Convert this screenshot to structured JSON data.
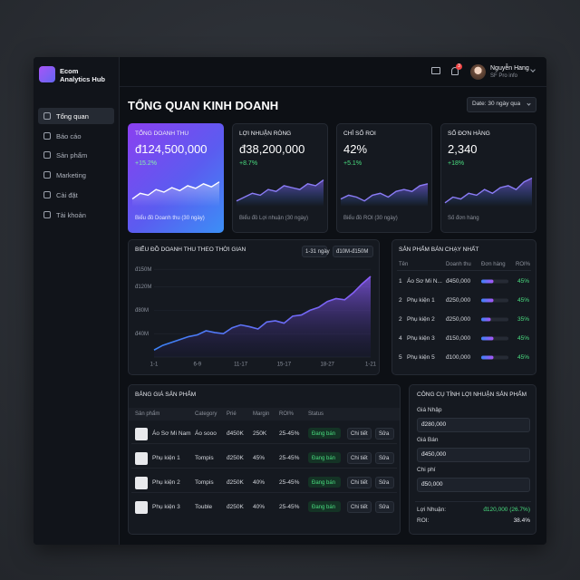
{
  "sidebar": {
    "brand": [
      "Ecom",
      "Analytics Hub"
    ],
    "nav": [
      "Tổng quan",
      "Báo cáo",
      "Sản phẩm",
      "Marketing",
      "Cài đặt",
      "Tài khoản"
    ]
  },
  "topbar": {
    "notifications": "3",
    "user_name": "Nguyễn Hang",
    "user_role": "SF Pro info"
  },
  "header": {
    "title": "TỔNG QUAN KINH DOANH",
    "date_filter": "Date: 30 ngày qua"
  },
  "kpis": [
    {
      "label": "TỔNG DOANH THU",
      "value": "đ124,500,000",
      "change": "+15.2%",
      "caption": "Biểu đồ Doanh thu (30 ngày)",
      "spark": [
        20,
        35,
        30,
        45,
        38,
        50,
        42,
        55,
        48,
        60,
        52,
        65
      ],
      "ylim": [
        0,
        100
      ]
    },
    {
      "label": "LỢI NHUẬN RÒNG",
      "value": "đ38,200,000",
      "change": "+8.7%",
      "caption": "Biểu đồ Lợi nhuận (30 ngày)",
      "spark": [
        15,
        25,
        35,
        30,
        45,
        40,
        55,
        50,
        45,
        60,
        55,
        70
      ],
      "ylim": [
        0,
        100
      ]
    },
    {
      "label": "CHỈ SỐ ROI",
      "value": "42%",
      "change": "+5.1%",
      "caption": "Biểu đồ ROI (30 ngày)",
      "spark": [
        20,
        30,
        25,
        15,
        30,
        35,
        25,
        40,
        45,
        40,
        55,
        60
      ],
      "ylim": [
        0,
        100
      ]
    },
    {
      "label": "SỐ ĐƠN HÀNG",
      "value": "2,340",
      "change": "+18%",
      "caption": "Số đơn hàng",
      "spark": [
        10,
        25,
        20,
        35,
        30,
        45,
        35,
        50,
        55,
        45,
        65,
        75
      ],
      "ylim": [
        0,
        100
      ]
    }
  ],
  "revenue_chart": {
    "type": "area",
    "title": "BIỂU ĐỒ DOANH THU THEO THỜI GIAN",
    "buttons": [
      "1-31 ngày",
      "đ10M-đ150M"
    ],
    "categories": [
      "1-1",
      null,
      null,
      null,
      null,
      "6-9",
      null,
      null,
      null,
      null,
      "11-17",
      null,
      null,
      null,
      null,
      "15-17",
      null,
      null,
      null,
      null,
      "18-27",
      null,
      null,
      null,
      null,
      "1-21"
    ],
    "values": [
      12,
      20,
      25,
      30,
      35,
      38,
      45,
      42,
      40,
      50,
      55,
      52,
      48,
      60,
      62,
      58,
      70,
      72,
      80,
      85,
      95,
      100,
      98,
      110,
      125,
      138
    ],
    "ylim": [
      0,
      155
    ],
    "yticks": [
      {
        "value": 150,
        "label": "đ150M"
      },
      {
        "value": 120,
        "label": "đ120M"
      },
      {
        "value": 80,
        "label": "đ80M"
      },
      {
        "value": 40,
        "label": "đ40M"
      }
    ],
    "grid": true,
    "color": "#8b5cf6"
  },
  "top_products": {
    "type": "bar",
    "title": "SẢN PHẨM BÁN CHẠY NHẤT",
    "columns": [
      "Tên",
      "Doanh thu",
      "Đơn hàng",
      "ROI%"
    ],
    "rows": [
      {
        "rank": "1",
        "name": "Áo Sơ Mi N...",
        "revenue": "đ450,000"
      },
      {
        "rank": "2",
        "name": "Phụ kiện 1",
        "revenue": "đ250,000"
      },
      {
        "rank": "2",
        "name": "Phụ kiện 2",
        "revenue": "đ250,000"
      },
      {
        "rank": "4",
        "name": "Phụ kiện 3",
        "revenue": "đ150,000"
      },
      {
        "rank": "5",
        "name": "Phụ kiện 5",
        "revenue": "đ100,000"
      }
    ],
    "values": [
      45,
      45,
      35,
      45,
      45
    ],
    "value_labels": [
      "45%",
      "45%",
      "35%",
      "45%",
      "45%"
    ],
    "xlim": [
      0,
      100
    ]
  },
  "price_table": {
    "title": "BẢNG GIÁ SẢN PHẨM",
    "columns": [
      "Sản phẩm",
      "Category",
      "Prié",
      "Margin",
      "ROI%",
      "Status"
    ],
    "rows": [
      [
        "Áo Sơ Mi Nam",
        "Áo sooo",
        "đ450K",
        "250K",
        "25-45%",
        "Đang bán"
      ],
      [
        "Phụ kiện 1",
        "Tompis",
        "đ250K",
        "45%",
        "25-45%",
        "Đang bán"
      ],
      [
        "Phụ kiện 2",
        "Tompis",
        "đ250K",
        "40%",
        "25-45%",
        "Đang bán"
      ],
      [
        "Phụ kiện 3",
        "Touble",
        "đ250K",
        "40%",
        "25-45%",
        "Đang bán"
      ]
    ],
    "actions": [
      "Chi tiết",
      "Sửa"
    ]
  },
  "calculator": {
    "title": "CÔNG CỤ TÍNH LỢI NHUẬN SẢN PHẨM",
    "fields": [
      {
        "label": "Giá Nhập",
        "value": "đ280,000"
      },
      {
        "label": "Giá Bán",
        "value": "đ450,000"
      },
      {
        "label": "Chi phí",
        "value": "đ50,000"
      }
    ],
    "results": [
      {
        "label": "Lợi Nhuận:",
        "value": "đ120,000 (26.7%)"
      },
      {
        "label": "ROI:",
        "value": "38.4%"
      }
    ]
  }
}
